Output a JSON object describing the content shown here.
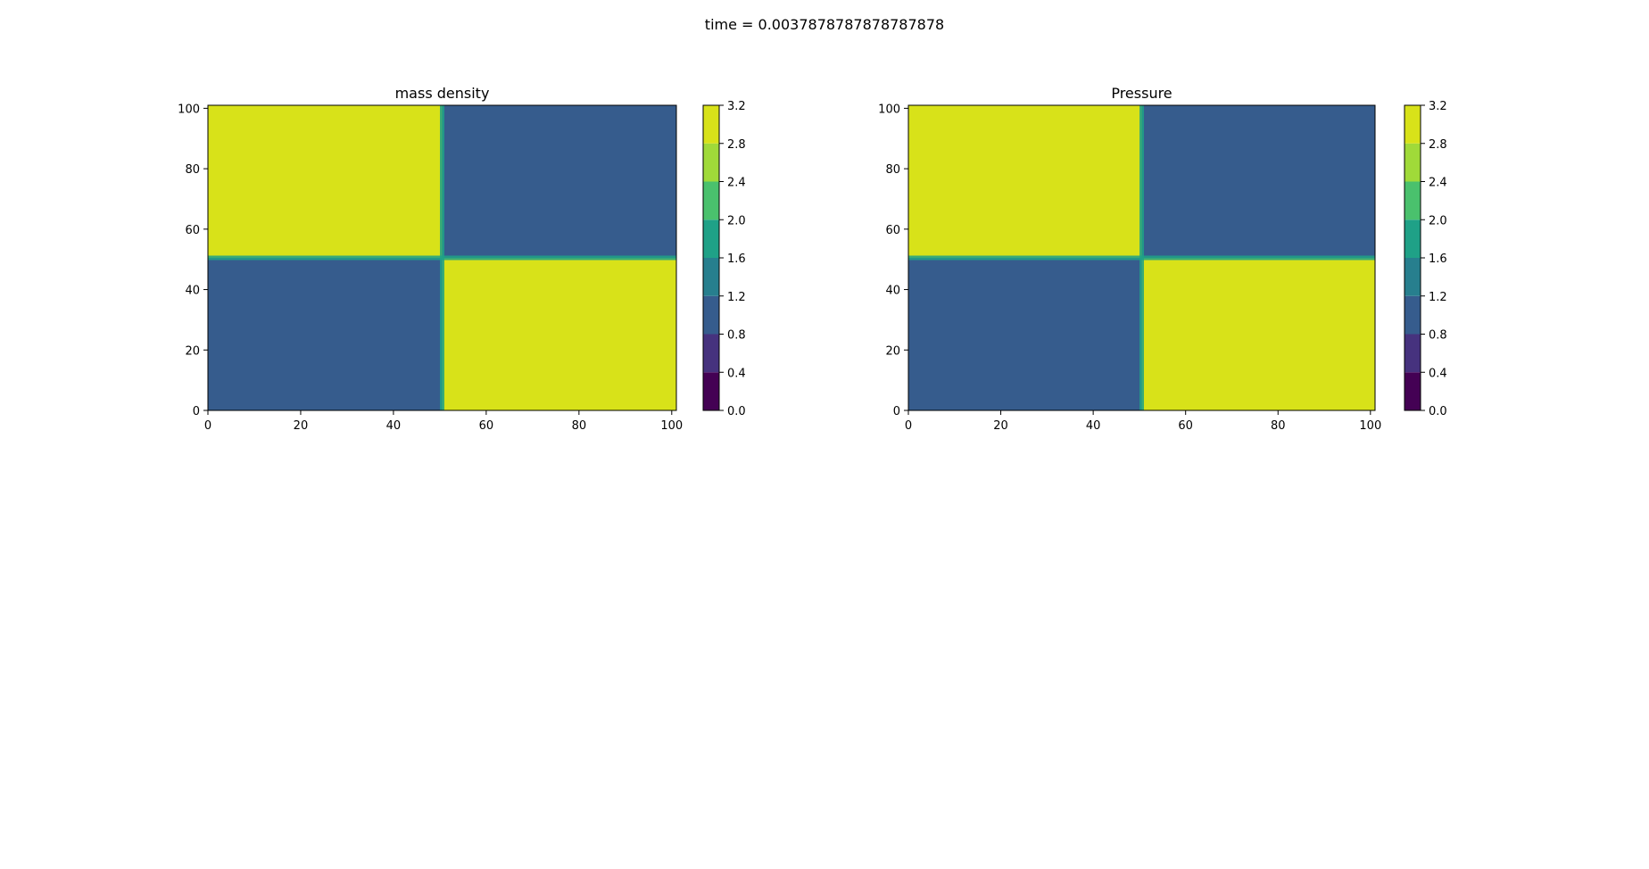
{
  "figure": {
    "suptitle": "time = 0.0037878787878787878"
  },
  "colors": {
    "levels": [
      "#440154",
      "#46327e",
      "#365c8d",
      "#277f8e",
      "#1fa187",
      "#4ac16d",
      "#a0da39",
      "#d8e219"
    ],
    "high": "#d8e219",
    "low": "#33628d",
    "edge": "#1fa187"
  },
  "chart_data": [
    {
      "type": "heatmap",
      "title": "mass density",
      "xlabel": "",
      "ylabel": "",
      "xlim": [
        0,
        101
      ],
      "ylim": [
        0,
        101
      ],
      "x_ticks": [
        0,
        20,
        40,
        60,
        80,
        100
      ],
      "y_ticks": [
        0,
        20,
        40,
        60,
        80,
        100
      ],
      "boundary": 50.5,
      "regions": [
        {
          "quadrant": "top-left",
          "value": 3.0
        },
        {
          "quadrant": "top-right",
          "value": 1.0
        },
        {
          "quadrant": "bottom-left",
          "value": 1.0
        },
        {
          "quadrant": "bottom-right",
          "value": 3.0
        }
      ],
      "colorbar": {
        "levels": [
          0.0,
          0.4,
          0.8,
          1.2,
          1.6,
          2.0,
          2.4,
          2.8,
          3.2
        ],
        "tick_labels": [
          "0.0",
          "0.4",
          "0.8",
          "1.2",
          "1.6",
          "2.0",
          "2.4",
          "2.8",
          "3.2"
        ]
      }
    },
    {
      "type": "heatmap",
      "title": "Pressure",
      "xlabel": "",
      "ylabel": "",
      "xlim": [
        0,
        101
      ],
      "ylim": [
        0,
        101
      ],
      "x_ticks": [
        0,
        20,
        40,
        60,
        80,
        100
      ],
      "y_ticks": [
        0,
        20,
        40,
        60,
        80,
        100
      ],
      "boundary": 50.5,
      "regions": [
        {
          "quadrant": "top-left",
          "value": 3.0
        },
        {
          "quadrant": "top-right",
          "value": 1.0
        },
        {
          "quadrant": "bottom-left",
          "value": 1.0
        },
        {
          "quadrant": "bottom-right",
          "value": 3.0
        }
      ],
      "colorbar": {
        "levels": [
          0.0,
          0.4,
          0.8,
          1.2,
          1.6,
          2.0,
          2.4,
          2.8,
          3.2
        ],
        "tick_labels": [
          "0.0",
          "0.4",
          "0.8",
          "1.2",
          "1.6",
          "2.0",
          "2.4",
          "2.8",
          "3.2"
        ]
      }
    }
  ]
}
